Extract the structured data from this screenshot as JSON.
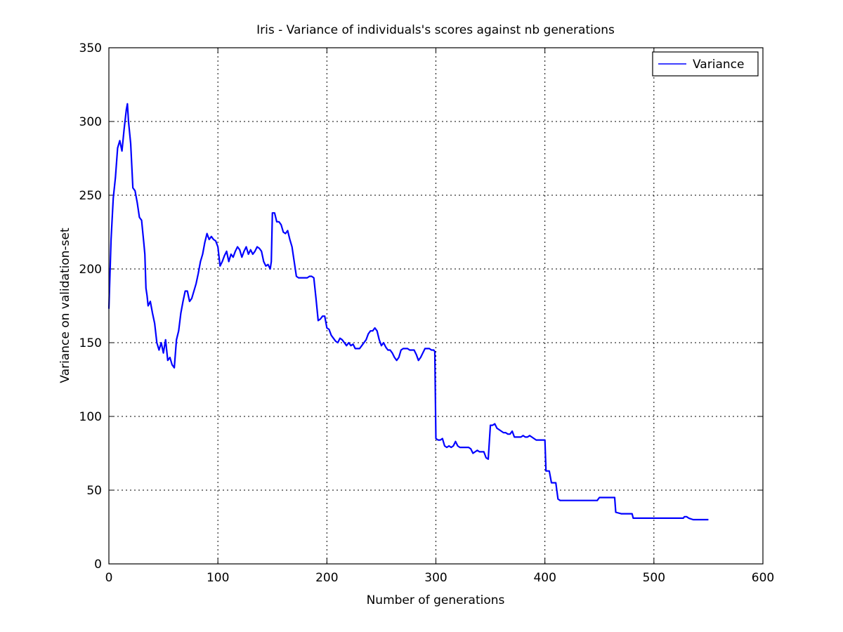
{
  "chart_data": {
    "type": "line",
    "title": "Iris - Variance of individuals's scores against nb generations",
    "xlabel": "Number of generations",
    "ylabel": "Variance on validation-set",
    "xlim": [
      0,
      600
    ],
    "ylim": [
      0,
      350
    ],
    "xticks": [
      0,
      100,
      200,
      300,
      400,
      500,
      600
    ],
    "yticks": [
      0,
      50,
      100,
      150,
      200,
      250,
      300,
      350
    ],
    "grid": true,
    "legend_position": "top-right",
    "series": [
      {
        "name": "Variance",
        "color": "#0000ff",
        "points": [
          [
            0,
            173
          ],
          [
            2,
            220
          ],
          [
            4,
            248
          ],
          [
            6,
            262
          ],
          [
            8,
            282
          ],
          [
            10,
            287
          ],
          [
            12,
            280
          ],
          [
            14,
            295
          ],
          [
            16,
            308
          ],
          [
            17,
            312
          ],
          [
            18,
            300
          ],
          [
            20,
            285
          ],
          [
            21,
            270
          ],
          [
            22,
            255
          ],
          [
            24,
            253
          ],
          [
            26,
            245
          ],
          [
            28,
            235
          ],
          [
            30,
            233
          ],
          [
            32,
            218
          ],
          [
            33,
            210
          ],
          [
            34,
            187
          ],
          [
            35,
            182
          ],
          [
            36,
            175
          ],
          [
            38,
            178
          ],
          [
            40,
            170
          ],
          [
            42,
            163
          ],
          [
            44,
            150
          ],
          [
            46,
            145
          ],
          [
            48,
            150
          ],
          [
            50,
            143
          ],
          [
            52,
            152
          ],
          [
            54,
            138
          ],
          [
            56,
            140
          ],
          [
            58,
            135
          ],
          [
            60,
            133
          ],
          [
            62,
            152
          ],
          [
            64,
            158
          ],
          [
            66,
            170
          ],
          [
            68,
            178
          ],
          [
            70,
            185
          ],
          [
            72,
            185
          ],
          [
            74,
            178
          ],
          [
            76,
            180
          ],
          [
            78,
            185
          ],
          [
            80,
            190
          ],
          [
            82,
            197
          ],
          [
            84,
            205
          ],
          [
            86,
            210
          ],
          [
            88,
            218
          ],
          [
            90,
            224
          ],
          [
            92,
            220
          ],
          [
            94,
            222
          ],
          [
            96,
            220
          ],
          [
            98,
            219
          ],
          [
            100,
            215
          ],
          [
            102,
            202
          ],
          [
            104,
            205
          ],
          [
            106,
            209
          ],
          [
            108,
            212
          ],
          [
            110,
            205
          ],
          [
            112,
            210
          ],
          [
            114,
            208
          ],
          [
            116,
            212
          ],
          [
            118,
            215
          ],
          [
            120,
            213
          ],
          [
            122,
            208
          ],
          [
            124,
            212
          ],
          [
            126,
            215
          ],
          [
            128,
            210
          ],
          [
            130,
            213
          ],
          [
            132,
            210
          ],
          [
            134,
            212
          ],
          [
            136,
            215
          ],
          [
            138,
            214
          ],
          [
            140,
            212
          ],
          [
            142,
            205
          ],
          [
            144,
            202
          ],
          [
            146,
            203
          ],
          [
            148,
            200
          ],
          [
            149,
            205
          ],
          [
            150,
            238
          ],
          [
            152,
            238
          ],
          [
            154,
            232
          ],
          [
            156,
            232
          ],
          [
            158,
            230
          ],
          [
            160,
            225
          ],
          [
            162,
            224
          ],
          [
            164,
            226
          ],
          [
            166,
            220
          ],
          [
            168,
            215
          ],
          [
            170,
            205
          ],
          [
            172,
            195
          ],
          [
            174,
            194
          ],
          [
            176,
            194
          ],
          [
            178,
            194
          ],
          [
            180,
            194
          ],
          [
            182,
            194
          ],
          [
            184,
            195
          ],
          [
            186,
            195
          ],
          [
            188,
            194
          ],
          [
            190,
            180
          ],
          [
            192,
            165
          ],
          [
            194,
            166
          ],
          [
            196,
            168
          ],
          [
            198,
            168
          ],
          [
            200,
            160
          ],
          [
            202,
            159
          ],
          [
            204,
            155
          ],
          [
            206,
            153
          ],
          [
            208,
            151
          ],
          [
            210,
            150
          ],
          [
            212,
            153
          ],
          [
            214,
            152
          ],
          [
            216,
            150
          ],
          [
            218,
            148
          ],
          [
            220,
            150
          ],
          [
            222,
            148
          ],
          [
            224,
            149
          ],
          [
            226,
            146
          ],
          [
            228,
            146
          ],
          [
            230,
            146
          ],
          [
            232,
            148
          ],
          [
            234,
            150
          ],
          [
            236,
            152
          ],
          [
            238,
            156
          ],
          [
            240,
            158
          ],
          [
            242,
            158
          ],
          [
            244,
            160
          ],
          [
            246,
            158
          ],
          [
            248,
            152
          ],
          [
            250,
            148
          ],
          [
            252,
            150
          ],
          [
            254,
            147
          ],
          [
            256,
            145
          ],
          [
            258,
            145
          ],
          [
            260,
            143
          ],
          [
            262,
            140
          ],
          [
            264,
            138
          ],
          [
            266,
            140
          ],
          [
            268,
            145
          ],
          [
            270,
            146
          ],
          [
            272,
            146
          ],
          [
            274,
            146
          ],
          [
            276,
            145
          ],
          [
            278,
            145
          ],
          [
            280,
            145
          ],
          [
            282,
            142
          ],
          [
            284,
            138
          ],
          [
            286,
            140
          ],
          [
            288,
            143
          ],
          [
            290,
            146
          ],
          [
            292,
            146
          ],
          [
            294,
            146
          ],
          [
            296,
            145
          ],
          [
            298,
            145
          ],
          [
            299,
            144
          ],
          [
            300,
            85
          ],
          [
            302,
            84
          ],
          [
            304,
            84
          ],
          [
            306,
            85
          ],
          [
            308,
            80
          ],
          [
            310,
            79
          ],
          [
            312,
            80
          ],
          [
            314,
            79
          ],
          [
            316,
            80
          ],
          [
            318,
            83
          ],
          [
            320,
            80
          ],
          [
            322,
            79
          ],
          [
            324,
            79
          ],
          [
            326,
            79
          ],
          [
            328,
            79
          ],
          [
            330,
            79
          ],
          [
            332,
            78
          ],
          [
            334,
            75
          ],
          [
            336,
            76
          ],
          [
            338,
            77
          ],
          [
            340,
            76
          ],
          [
            342,
            76
          ],
          [
            344,
            76
          ],
          [
            346,
            72
          ],
          [
            348,
            71
          ],
          [
            350,
            94
          ],
          [
            352,
            94
          ],
          [
            354,
            95
          ],
          [
            356,
            92
          ],
          [
            358,
            91
          ],
          [
            360,
            90
          ],
          [
            362,
            89
          ],
          [
            364,
            89
          ],
          [
            366,
            88
          ],
          [
            368,
            88
          ],
          [
            370,
            90
          ],
          [
            372,
            86
          ],
          [
            374,
            86
          ],
          [
            376,
            86
          ],
          [
            378,
            86
          ],
          [
            380,
            87
          ],
          [
            382,
            86
          ],
          [
            384,
            86
          ],
          [
            386,
            87
          ],
          [
            388,
            86
          ],
          [
            390,
            85
          ],
          [
            392,
            84
          ],
          [
            394,
            84
          ],
          [
            396,
            84
          ],
          [
            398,
            84
          ],
          [
            400,
            84
          ],
          [
            401,
            63
          ],
          [
            404,
            63
          ],
          [
            406,
            55
          ],
          [
            408,
            55
          ],
          [
            410,
            55
          ],
          [
            412,
            44
          ],
          [
            414,
            43
          ],
          [
            420,
            43
          ],
          [
            430,
            43
          ],
          [
            440,
            43
          ],
          [
            448,
            43
          ],
          [
            450,
            45
          ],
          [
            455,
            45
          ],
          [
            460,
            45
          ],
          [
            464,
            45
          ],
          [
            465,
            35
          ],
          [
            470,
            34
          ],
          [
            475,
            34
          ],
          [
            480,
            34
          ],
          [
            481,
            31
          ],
          [
            490,
            31
          ],
          [
            500,
            31
          ],
          [
            510,
            31
          ],
          [
            520,
            31
          ],
          [
            527,
            31
          ],
          [
            528,
            32
          ],
          [
            530,
            32
          ],
          [
            532,
            31
          ],
          [
            536,
            30
          ],
          [
            540,
            30
          ],
          [
            545,
            30
          ],
          [
            550,
            30
          ]
        ]
      }
    ]
  }
}
